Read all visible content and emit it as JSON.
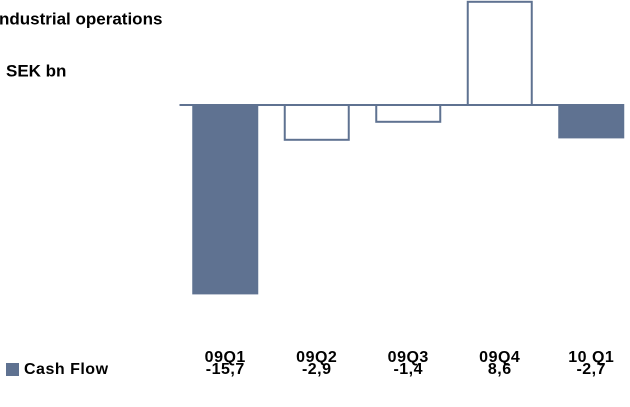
{
  "chart_data": {
    "type": "bar",
    "subtitle": "ndustrial operations",
    "unit_label": "SEK bn",
    "categories": [
      "09Q1",
      "09Q2",
      "09Q3",
      "09Q4",
      "10 Q1"
    ],
    "series": [
      {
        "name": "Cash Flow",
        "color": "#5f7291",
        "values": [
          -15.7,
          -2.9,
          -1.4,
          8.6,
          -2.7
        ],
        "value_labels": [
          "-15,7",
          "-2,9",
          "-1,4",
          "8,6",
          "-2,7"
        ],
        "bar_fills": [
          "#5f7291",
          "#ffffff",
          "#ffffff",
          "#ffffff",
          "#5f7291"
        ]
      }
    ],
    "ylim": [
      -16,
      8.75
    ],
    "grid": false
  }
}
